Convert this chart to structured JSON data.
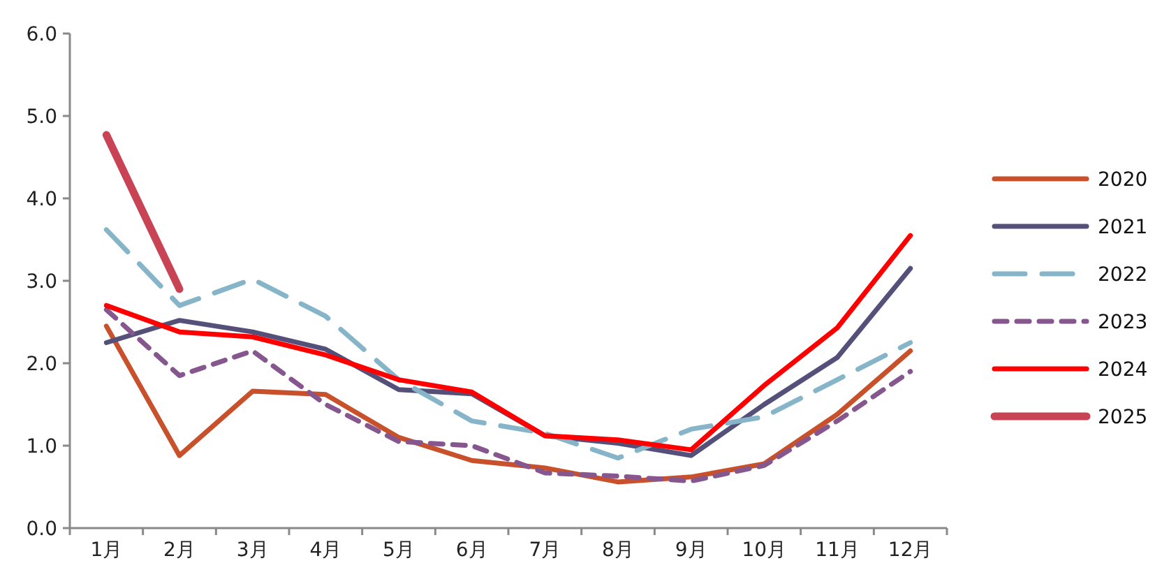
{
  "chart_data": {
    "type": "line",
    "categories": [
      "1月",
      "2月",
      "3月",
      "4月",
      "5月",
      "6月",
      "7月",
      "8月",
      "9月",
      "10月",
      "11月",
      "12月"
    ],
    "ylim": [
      0,
      6
    ],
    "yticks": [
      {
        "value": 0,
        "label": "0.0"
      },
      {
        "value": 1,
        "label": "1.0"
      },
      {
        "value": 2,
        "label": "2.0"
      },
      {
        "value": 3,
        "label": "3.0"
      },
      {
        "value": 4,
        "label": "4.0"
      },
      {
        "value": 5,
        "label": "5.0"
      },
      {
        "value": 6,
        "label": "6.0"
      }
    ],
    "grid": false,
    "legend": "right",
    "marker": "none",
    "series": [
      {
        "name": "2020",
        "color": "#c8502a",
        "line_style": "solid",
        "values": [
          2.45,
          0.88,
          1.66,
          1.62,
          1.1,
          0.82,
          0.73,
          0.56,
          0.62,
          0.78,
          1.38,
          2.15
        ]
      },
      {
        "name": "2021",
        "color": "#55507a",
        "line_style": "solid",
        "values": [
          2.25,
          2.52,
          2.38,
          2.17,
          1.68,
          1.63,
          1.12,
          1.03,
          0.88,
          1.5,
          2.07,
          3.15
        ]
      },
      {
        "name": "2022",
        "color": "#86b4c8",
        "line_style": "dashed",
        "values": [
          3.62,
          2.7,
          3.02,
          2.57,
          1.8,
          1.3,
          1.15,
          0.85,
          1.2,
          1.35,
          1.8,
          2.25
        ]
      },
      {
        "name": "2023",
        "color": "#85578e",
        "line_style": "dotted",
        "values": [
          2.65,
          1.85,
          2.15,
          1.5,
          1.05,
          1.0,
          0.67,
          0.63,
          0.57,
          0.76,
          1.3,
          1.9
        ]
      },
      {
        "name": "2024",
        "color": "#ff0000",
        "line_style": "solid",
        "values": [
          2.7,
          2.38,
          2.32,
          2.1,
          1.8,
          1.65,
          1.12,
          1.07,
          0.95,
          1.73,
          2.43,
          3.55
        ]
      },
      {
        "name": "2025",
        "color": "#c84455",
        "line_style": "solid",
        "values": [
          4.77,
          2.9,
          null,
          null,
          null,
          null,
          null,
          null,
          null,
          null,
          null,
          null
        ]
      }
    ]
  }
}
